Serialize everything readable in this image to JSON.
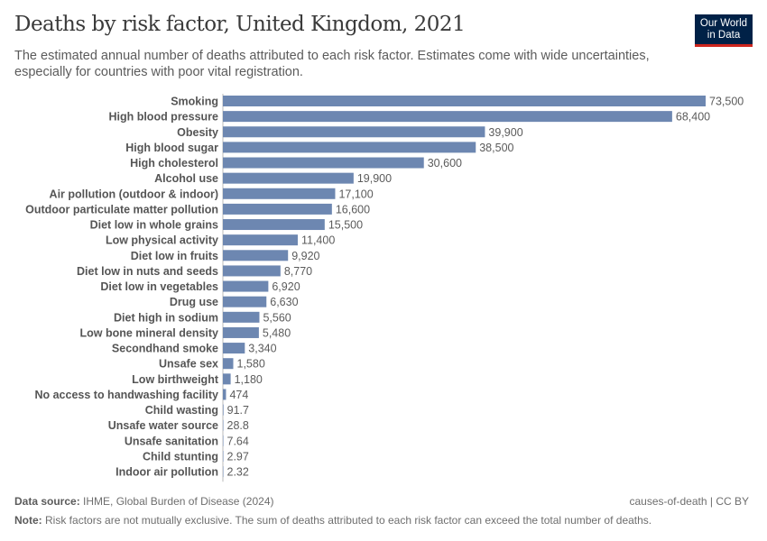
{
  "title": "Deaths by risk factor, United Kingdom, 2021",
  "subtitle": "The estimated annual number of deaths attributed to each risk factor. Estimates come with wide uncertainties, especially for countries with poor vital registration.",
  "logo": {
    "line1": "Our World",
    "line2": "in Data"
  },
  "footer": {
    "source_label": "Data source:",
    "source": "IHME, Global Burden of Disease (2024)",
    "license": "causes-of-death | CC BY",
    "note_label": "Note:",
    "note": "Risk factors are not mutually exclusive. The sum of deaths attributed to each risk factor can exceed the total number of deaths."
  },
  "chart_data": {
    "type": "bar",
    "orientation": "horizontal",
    "bar_color": "#6d87b1",
    "categories": [
      "Smoking",
      "High blood pressure",
      "Obesity",
      "High blood sugar",
      "High cholesterol",
      "Alcohol use",
      "Air pollution (outdoor & indoor)",
      "Outdoor particulate matter pollution",
      "Diet low in whole grains",
      "Low physical activity",
      "Diet low in fruits",
      "Diet low in nuts and seeds",
      "Diet low in vegetables",
      "Drug use",
      "Diet high in sodium",
      "Low bone mineral density",
      "Secondhand smoke",
      "Unsafe sex",
      "Low birthweight",
      "No access to handwashing facility",
      "Child wasting",
      "Unsafe water source",
      "Unsafe sanitation",
      "Child stunting",
      "Indoor air pollution"
    ],
    "values": [
      73500,
      68400,
      39900,
      38500,
      30600,
      19900,
      17100,
      16600,
      15500,
      11400,
      9920,
      8770,
      6920,
      6630,
      5560,
      5480,
      3340,
      1580,
      1180,
      474,
      91.7,
      28.8,
      7.64,
      2.97,
      2.32
    ],
    "labels": [
      "73,500",
      "68,400",
      "39,900",
      "38,500",
      "30,600",
      "19,900",
      "17,100",
      "16,600",
      "15,500",
      "11,400",
      "9,920",
      "8,770",
      "6,920",
      "6,630",
      "5,560",
      "5,480",
      "3,340",
      "1,580",
      "1,180",
      "474",
      "91.7",
      "28.8",
      "7.64",
      "2.97",
      "2.32"
    ],
    "xlim": [
      0,
      73500
    ]
  }
}
